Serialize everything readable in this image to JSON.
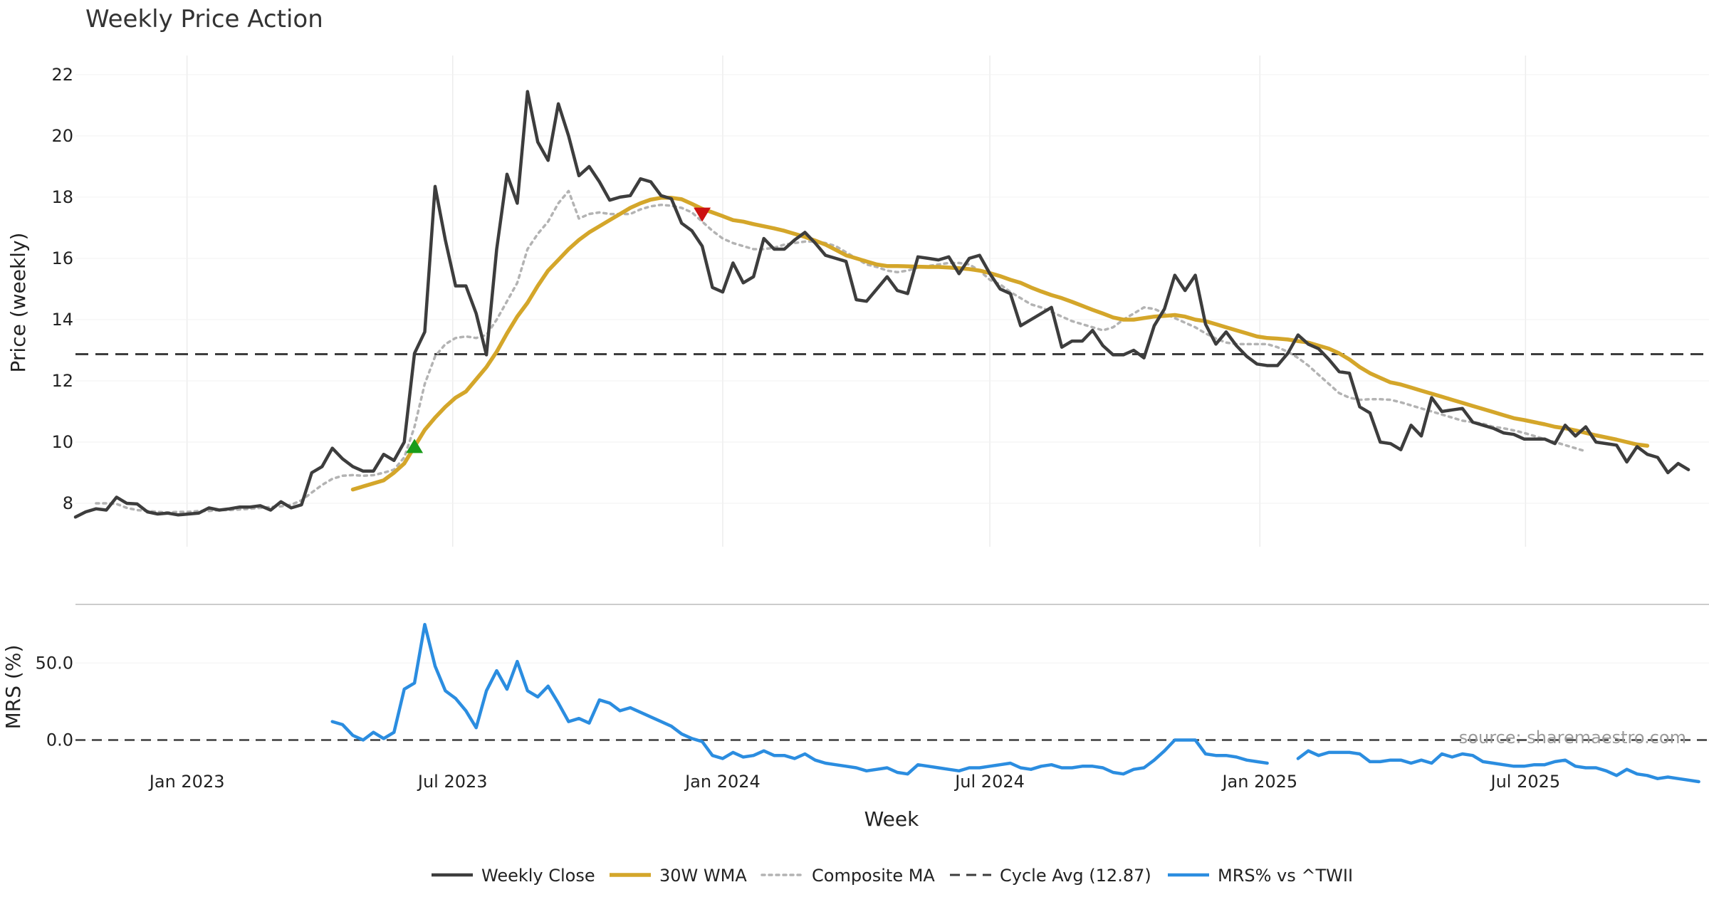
{
  "chart_data": {
    "type": "line",
    "title": "Weekly Price Action",
    "xlabel": "Week",
    "watermark": "source: sharemaestro.com",
    "x_ticks": [
      "Jan 2023",
      "Jul 2023",
      "Jan 2024",
      "Jul 2024",
      "Jan 2025",
      "Jul 2025"
    ],
    "x_range": [
      "2022-10-17",
      "2025-11-03"
    ],
    "price_panel": {
      "ylabel": "Price (weekly)",
      "ylim": [
        7.0,
        22.3
      ],
      "yticks": [
        "8",
        "10",
        "12",
        "14",
        "16",
        "18",
        "20",
        "22"
      ],
      "cycle_avg": 12.87,
      "series": [
        {
          "name": "Weekly Close",
          "color": "#3d3d3d",
          "style": "solid",
          "x_start": "2022-10-17",
          "x_step_days": 7,
          "values": [
            7.55,
            7.72,
            7.82,
            7.78,
            8.2,
            8.0,
            7.98,
            7.72,
            7.65,
            7.68,
            7.62,
            7.65,
            7.68,
            7.85,
            7.78,
            7.82,
            7.88,
            7.88,
            7.92,
            7.78,
            8.05,
            7.85,
            7.95,
            9.0,
            9.2,
            9.8,
            9.45,
            9.2,
            9.05,
            9.05,
            9.6,
            9.4,
            10.0,
            12.9,
            13.6,
            18.35,
            16.6,
            15.1,
            15.1,
            14.2,
            12.85,
            16.3,
            18.75,
            17.8,
            21.45,
            19.8,
            19.2,
            21.05,
            20.0,
            18.7,
            19.0,
            18.5,
            17.9,
            18.0,
            18.05,
            18.6,
            18.5,
            18.05,
            17.95,
            17.15,
            16.9,
            16.4,
            15.05,
            14.9,
            15.85,
            15.2,
            15.4,
            16.65,
            16.3,
            16.3,
            16.6,
            16.85,
            16.5,
            16.1,
            16.0,
            15.9,
            14.65,
            14.6,
            15.0,
            15.4,
            14.95,
            14.85,
            16.05,
            16.0,
            15.95,
            16.05,
            15.5,
            16.0,
            16.1,
            15.5,
            15.0,
            14.85,
            13.8,
            14.0,
            14.2,
            14.4,
            13.1,
            13.3,
            13.3,
            13.65,
            13.15,
            12.85,
            12.85,
            13.0,
            12.75,
            13.8,
            14.35,
            15.45,
            14.95,
            15.45,
            13.85,
            13.2,
            13.6,
            13.15,
            12.8,
            12.55,
            12.5,
            12.5,
            12.9,
            13.5,
            13.2,
            13.05,
            12.7,
            12.3,
            12.25,
            11.15,
            10.95,
            10.0,
            9.95,
            9.75,
            10.55,
            10.2,
            11.45,
            11.0,
            11.05,
            11.1,
            10.65,
            10.55,
            10.45,
            10.3,
            10.25,
            10.1,
            10.1,
            10.1,
            9.95,
            10.55,
            10.2,
            10.5,
            10.0,
            9.95,
            9.9,
            9.35,
            9.85,
            9.6,
            9.5,
            9.0,
            9.3,
            9.1
          ]
        },
        {
          "name": "30W WMA",
          "color": "#d4a62a",
          "style": "solid",
          "x_start": "2023-04-24",
          "x_step_days": 7,
          "values": [
            8.45,
            8.55,
            8.65,
            8.75,
            9.0,
            9.3,
            9.85,
            10.4,
            10.8,
            11.15,
            11.45,
            11.65,
            12.05,
            12.45,
            12.95,
            13.55,
            14.1,
            14.55,
            15.1,
            15.6,
            15.95,
            16.3,
            16.6,
            16.85,
            17.05,
            17.25,
            17.45,
            17.65,
            17.8,
            17.92,
            17.98,
            17.98,
            17.93,
            17.78,
            17.62,
            17.5,
            17.38,
            17.25,
            17.2,
            17.12,
            17.05,
            16.98,
            16.9,
            16.8,
            16.7,
            16.58,
            16.45,
            16.28,
            16.1,
            16.0,
            15.9,
            15.8,
            15.75,
            15.75,
            15.74,
            15.73,
            15.72,
            15.72,
            15.7,
            15.68,
            15.65,
            15.6,
            15.52,
            15.42,
            15.3,
            15.2,
            15.05,
            14.92,
            14.8,
            14.7,
            14.58,
            14.45,
            14.32,
            14.2,
            14.07,
            14.0,
            14.0,
            14.05,
            14.1,
            14.12,
            14.15,
            14.1,
            14.0,
            13.95,
            13.85,
            13.75,
            13.65,
            13.55,
            13.45,
            13.4,
            13.38,
            13.35,
            13.3,
            13.25,
            13.15,
            13.05,
            12.9,
            12.7,
            12.45,
            12.25,
            12.1,
            11.95,
            11.88,
            11.78,
            11.68,
            11.58,
            11.48,
            11.38,
            11.28,
            11.18,
            11.08,
            10.98,
            10.88,
            10.78,
            10.72,
            10.65,
            10.58,
            10.5,
            10.45,
            10.38,
            10.3,
            10.22,
            10.15,
            10.08,
            10.0,
            9.92,
            9.88
          ]
        },
        {
          "name": "Composite MA",
          "color": "#b3b3b3",
          "style": "dotted",
          "x_start": "2022-10-31",
          "x_step_days": 7,
          "values": [
            8.0,
            8.0,
            7.98,
            7.85,
            7.78,
            7.75,
            7.72,
            7.7,
            7.72,
            7.72,
            7.75,
            7.75,
            7.78,
            7.78,
            7.8,
            7.82,
            7.85,
            7.88,
            7.9,
            7.95,
            8.1,
            8.35,
            8.6,
            8.8,
            8.9,
            8.92,
            8.9,
            8.92,
            9.0,
            9.1,
            9.5,
            10.5,
            11.9,
            12.8,
            13.2,
            13.4,
            13.45,
            13.4,
            13.5,
            14.0,
            14.6,
            15.2,
            16.3,
            16.8,
            17.2,
            17.8,
            18.2,
            17.3,
            17.45,
            17.5,
            17.45,
            17.45,
            17.45,
            17.6,
            17.7,
            17.75,
            17.72,
            17.65,
            17.5,
            17.2,
            16.9,
            16.65,
            16.5,
            16.4,
            16.3,
            16.3,
            16.35,
            16.45,
            16.5,
            16.55,
            16.55,
            16.5,
            16.4,
            16.2,
            16.0,
            15.8,
            15.72,
            15.6,
            15.55,
            15.6,
            15.7,
            15.75,
            15.8,
            15.85,
            15.85,
            15.8,
            15.6,
            15.3,
            15.15,
            14.9,
            14.7,
            14.5,
            14.4,
            14.25,
            14.1,
            13.95,
            13.85,
            13.75,
            13.65,
            13.75,
            14.0,
            14.2,
            14.4,
            14.35,
            14.2,
            14.05,
            13.9,
            13.75,
            13.55,
            13.38,
            13.25,
            13.2,
            13.2,
            13.2,
            13.2,
            13.1,
            12.95,
            12.75,
            12.5,
            12.2,
            11.9,
            11.6,
            11.45,
            11.38,
            11.4,
            11.4,
            11.38,
            11.3,
            11.2,
            11.1,
            11.0,
            10.9,
            10.8,
            10.7,
            10.65,
            10.6,
            10.5,
            10.45,
            10.38,
            10.3,
            10.2,
            10.1,
            10.0,
            9.9,
            9.8,
            9.7
          ]
        }
      ],
      "markers": [
        {
          "type": "buy",
          "date": "2023-06-05",
          "value": 9.85,
          "color": "#1a9c1a"
        },
        {
          "type": "sell",
          "date": "2023-12-18",
          "value": 17.45,
          "color": "#cc1111"
        }
      ]
    },
    "mrs_panel": {
      "ylabel": "MRS (%)",
      "ylim": [
        -27,
        82
      ],
      "yticks": [
        "0.0",
        "50.0"
      ],
      "series": [
        {
          "name": "MRS% vs ^TWII",
          "color": "#2b8de0",
          "style": "solid",
          "x_start": "2023-04-10",
          "x_step_days": 7,
          "values": [
            12,
            10,
            3,
            0,
            5,
            1,
            5,
            33,
            37,
            75,
            48,
            32,
            27,
            19,
            8,
            32,
            45,
            33,
            51,
            32,
            28,
            35,
            24,
            12,
            14,
            11,
            26,
            24,
            19,
            21,
            18,
            15,
            12,
            9,
            4,
            1,
            -1,
            -10,
            -12,
            -8,
            -11,
            -10,
            -7,
            -10,
            -10,
            -12,
            -9,
            -13,
            -15,
            -16,
            -17,
            -18,
            -20,
            -19,
            -18,
            -21,
            -22,
            -16,
            -17,
            -18,
            -19,
            -20,
            -18,
            -18,
            -17,
            -16,
            -15,
            -18,
            -19,
            -17,
            -16,
            -18,
            -18,
            -17,
            -17,
            -18,
            -21,
            -22,
            -19,
            -18,
            -13,
            -7,
            0,
            0,
            0,
            -9,
            -10,
            -10,
            -11,
            -13,
            -14,
            -15,
            null,
            null,
            -12,
            -7,
            -10,
            -8,
            -8,
            -8,
            -9,
            -14,
            -14,
            -13,
            -13,
            -15,
            -13,
            -15,
            -9,
            -11,
            -9,
            -10,
            -14,
            -15,
            -16,
            -17,
            -17,
            -16,
            -16,
            -14,
            -13,
            -17,
            -18,
            -18,
            -20,
            -23,
            -19,
            -22,
            -23,
            -25,
            -24,
            -25,
            -26,
            -27
          ]
        }
      ]
    },
    "legend": {
      "placement": "bottom-center",
      "entries": [
        "Weekly Close",
        "30W WMA",
        "Composite MA",
        "Cycle Avg (12.87)",
        "MRS% vs ^TWII"
      ]
    }
  }
}
